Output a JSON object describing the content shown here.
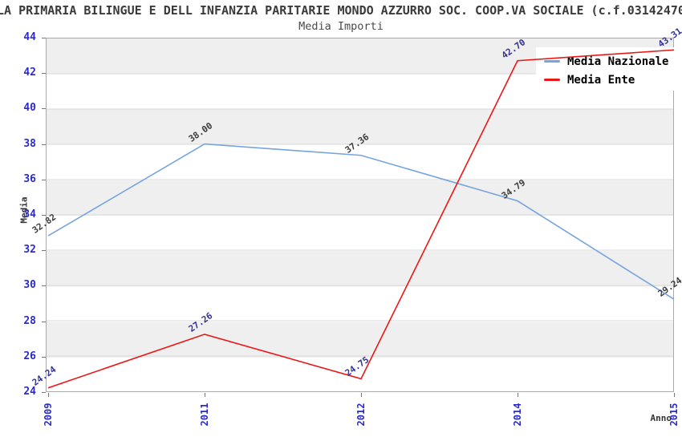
{
  "chart_data": {
    "type": "line",
    "title": "LA PRIMARIA BILINGUE E DELL INFANZIA PARITARIE MONDO AZZURRO SOC. COOP.VA SOCIALE (c.f.03142470",
    "subtitle": "Media Importi",
    "xlabel": "Anno",
    "ylabel": "Media",
    "ylim": [
      24,
      44
    ],
    "ytick_step": 2,
    "yticks": [
      24,
      26,
      28,
      30,
      32,
      34,
      36,
      38,
      40,
      42,
      44
    ],
    "categories": [
      "2009",
      "2011",
      "2012",
      "2014",
      "2015"
    ],
    "series": [
      {
        "name": "Media Nazionale",
        "color": "#76A4DF",
        "label_color": "#3C3C3C",
        "values": [
          32.82,
          38.0,
          37.36,
          34.79,
          29.24
        ],
        "point_labels": [
          "32.82",
          "38.00",
          "37.36",
          "34.79",
          "29.24"
        ]
      },
      {
        "name": "Media Ente",
        "color": "#EB1616",
        "label_color": "#33338F",
        "values": [
          24.24,
          27.26,
          24.75,
          42.7,
          43.31
        ],
        "point_labels": [
          "24.24",
          "27.26",
          "24.75",
          "42.70",
          "43.31"
        ]
      }
    ],
    "legend_position": "top-right",
    "grid": "horizontal-bands",
    "style": {
      "band_color": "#EFEFEF",
      "band_alt_color": "#FFFFFF",
      "gridline_color": "#D8D8D8",
      "axis_tick_label_color": "#2B2BC8",
      "title_color": "#3A3A3A",
      "subtitle_color": "#4A4A4A",
      "axis_title_color": "#333333",
      "plot_border_color": "#AAAAAA",
      "legend_bg": "#FFFFFF",
      "legend_text_color": "#000000"
    }
  }
}
